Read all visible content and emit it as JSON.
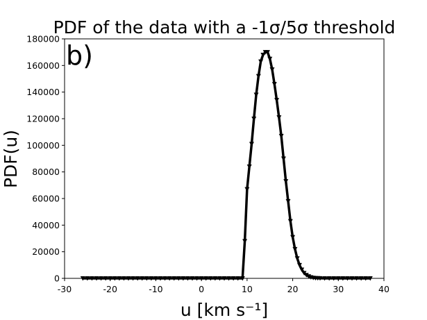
{
  "chart_data": {
    "type": "line",
    "title": "PDF of the data with a -1σ/5σ threshold",
    "annotation": "b)",
    "xlabel": "u [km s⁻¹]",
    "ylabel": "PDF(u)",
    "series": [
      {
        "color": "#000000",
        "x": [
          -26,
          -25,
          -24,
          -23,
          -22,
          -21,
          -20,
          -19,
          -18,
          -17,
          -16,
          -15,
          -14,
          -13,
          -12,
          -11,
          -10,
          -9,
          -8,
          -7,
          -6,
          -5,
          -4,
          -3,
          -2,
          -1,
          0,
          1,
          2,
          3,
          4,
          5,
          6,
          7,
          8,
          9,
          9.5,
          10,
          10.5,
          11,
          11.5,
          12,
          12.5,
          13,
          13.5,
          14,
          14.5,
          15,
          15.5,
          16,
          16.5,
          17,
          17.5,
          18,
          18.5,
          19,
          19.5,
          20,
          20.5,
          21,
          21.5,
          22,
          22.5,
          23,
          23.5,
          24,
          24.5,
          25,
          25.5,
          26,
          27,
          28,
          29,
          30,
          31,
          32,
          33,
          34,
          35,
          36,
          37
        ],
        "values": [
          0,
          0,
          0,
          0,
          0,
          0,
          0,
          0,
          0,
          0,
          0,
          0,
          0,
          0,
          0,
          0,
          0,
          0,
          0,
          0,
          0,
          0,
          0,
          0,
          0,
          0,
          0,
          0,
          0,
          0,
          0,
          0,
          0,
          0,
          0,
          0,
          28000,
          67000,
          84000,
          101000,
          120000,
          138000,
          152000,
          163000,
          168000,
          170000,
          170000,
          165000,
          157000,
          146000,
          134000,
          121000,
          107000,
          90000,
          73000,
          58000,
          43000,
          31000,
          22000,
          15000,
          10000,
          6500,
          4000,
          2500,
          1500,
          800,
          400,
          200,
          100,
          50,
          0,
          0,
          0,
          0,
          0,
          0,
          0,
          0,
          0,
          0,
          0
        ]
      }
    ],
    "xlim": [
      -30,
      40
    ],
    "xticks": [
      -30,
      -20,
      -10,
      0,
      10,
      20,
      30,
      40
    ],
    "ylim": [
      0,
      180000
    ],
    "yticks": [
      0,
      20000,
      40000,
      60000,
      80000,
      100000,
      120000,
      140000,
      160000,
      180000
    ]
  }
}
